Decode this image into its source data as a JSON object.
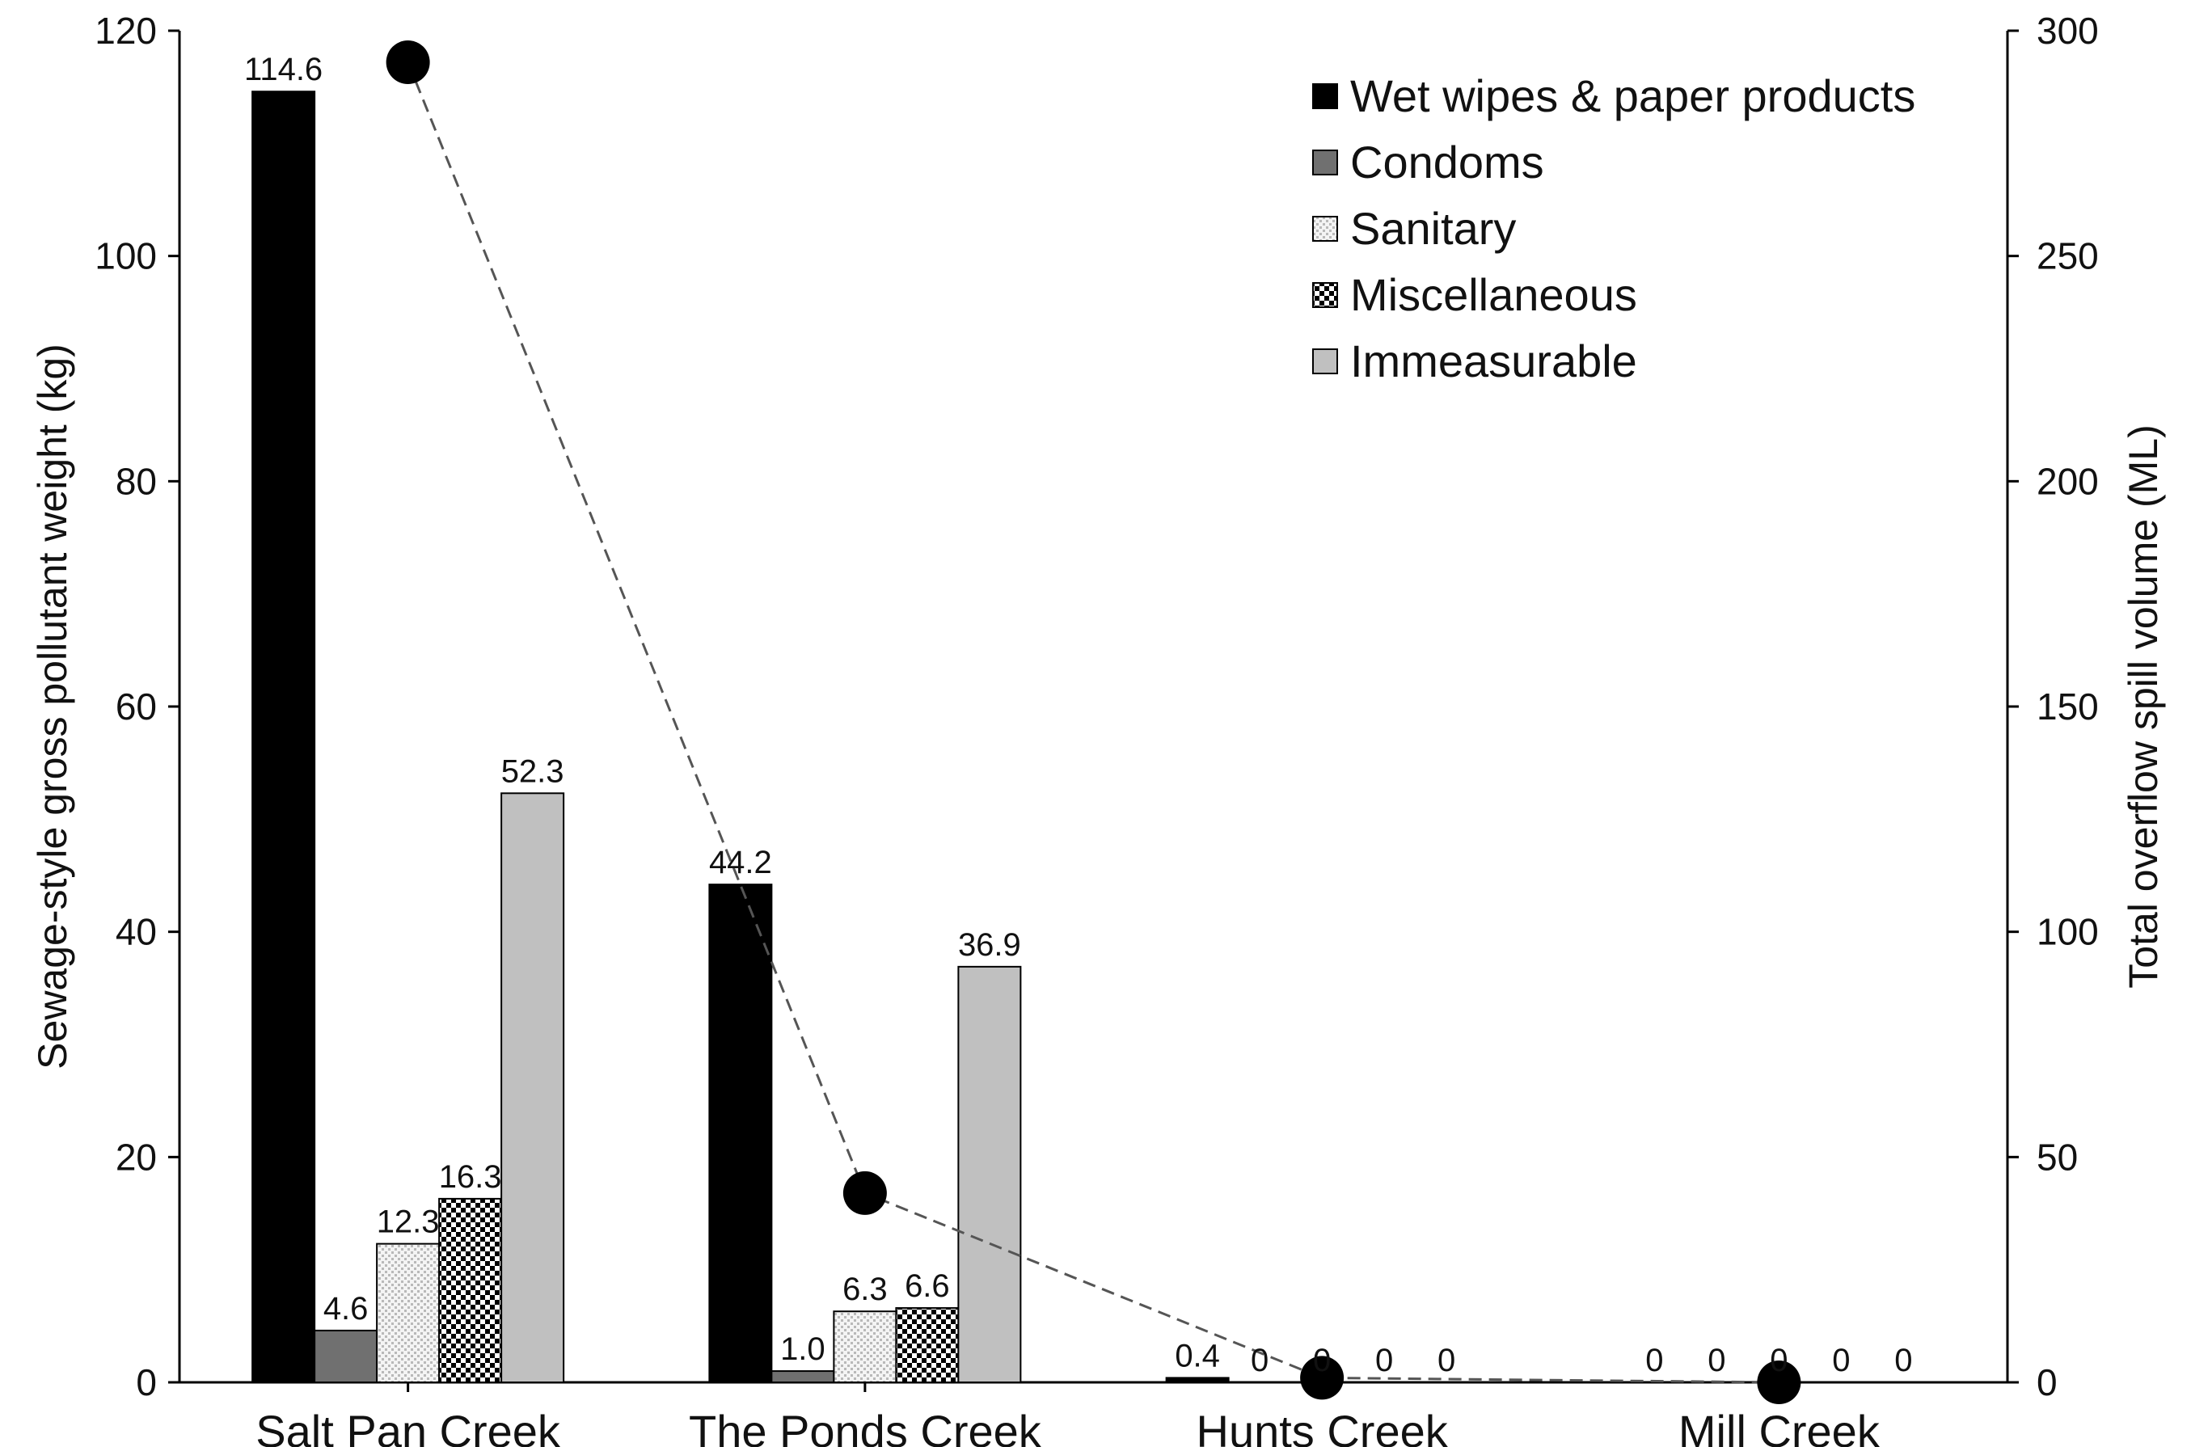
{
  "chart_data": {
    "type": "bar",
    "title": "",
    "categories": [
      "Salt Pan Creek",
      "The Ponds Creek",
      "Hunts Creek",
      "Mill Creek"
    ],
    "ylabel": "Sewage-style gross pollutant weight (kg)",
    "ylim": [
      0,
      120
    ],
    "yticks": [
      0,
      20,
      40,
      60,
      80,
      100,
      120
    ],
    "y2label": "Total overflow spill volume (ML)",
    "y2lim": [
      0,
      300
    ],
    "y2ticks": [
      0,
      50,
      100,
      150,
      200,
      250,
      300
    ],
    "grid": false,
    "legend_position": "top-right",
    "series": [
      {
        "name": "Wet wipes & paper products",
        "fill": "#000000",
        "pattern": "solid",
        "values": [
          114.6,
          44.2,
          0.4,
          0
        ],
        "labels": [
          "114.6",
          "44.2",
          "0.4",
          "0"
        ]
      },
      {
        "name": "Condoms",
        "fill": "#707070",
        "pattern": "solid",
        "values": [
          4.6,
          1.0,
          0,
          0
        ],
        "labels": [
          "4.6",
          "1.0",
          "0",
          "0"
        ]
      },
      {
        "name": "Sanitary",
        "fill": "#e6e6e6",
        "pattern": "dots",
        "values": [
          12.3,
          6.3,
          0,
          0
        ],
        "labels": [
          "12.3",
          "6.3",
          "0",
          "0"
        ]
      },
      {
        "name": "Miscellaneous",
        "fill": "#000000",
        "pattern": "checker",
        "values": [
          16.3,
          6.6,
          0,
          0
        ],
        "labels": [
          "16.3",
          "6.6",
          "0",
          "0"
        ]
      },
      {
        "name": "Immeasurable",
        "fill": "#c0c0c0",
        "pattern": "solid",
        "values": [
          52.3,
          36.9,
          0,
          0
        ],
        "labels": [
          "52.3",
          "36.9",
          "0",
          "0"
        ]
      }
    ],
    "overflow_series": {
      "type": "line",
      "axis": "right",
      "style": "dashed line with circle markers",
      "values": [
        293,
        42,
        1,
        0
      ]
    }
  }
}
